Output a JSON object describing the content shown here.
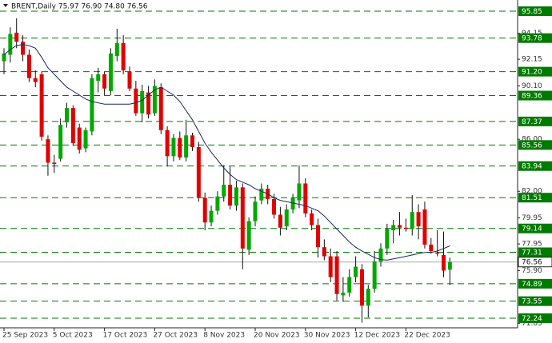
{
  "chart_data": {
    "type": "candlestick",
    "title": "BRENT,Daily  75.97 76.90 74.80 76.56",
    "categories": [
      "25 Sep 2023",
      null,
      null,
      null,
      null,
      null,
      null,
      null,
      "5 Oct 2023",
      null,
      null,
      null,
      null,
      null,
      null,
      null,
      "17 Oct 2023",
      null,
      null,
      null,
      null,
      null,
      null,
      null,
      "27 Oct 2023",
      null,
      null,
      null,
      null,
      null,
      null,
      null,
      "8 Nov 2023",
      null,
      null,
      null,
      null,
      null,
      null,
      null,
      "20 Nov 2023",
      null,
      null,
      null,
      null,
      null,
      null,
      null,
      "30 Nov 2023",
      null,
      null,
      null,
      null,
      null,
      null,
      null,
      "12 Dec 2023",
      null,
      null,
      null,
      null,
      null,
      null,
      null,
      "22 Dec 2023",
      null,
      null,
      null,
      null,
      null,
      null,
      null
    ],
    "open": [
      92.0,
      92.5,
      94.2,
      93.5,
      92.5,
      90.7,
      91.0,
      86.0,
      84.2,
      84.5,
      87.3,
      88.4,
      86.9,
      85.3,
      86.6,
      90.5,
      91.0,
      89.7,
      92.4,
      93.4,
      91.2,
      89.9,
      88.0,
      89.6,
      88.0,
      90.0,
      86.7,
      84.7,
      86.1,
      84.6,
      86.3,
      85.4,
      81.5,
      79.6,
      80.5,
      81.6,
      82.5,
      80.9,
      82.3,
      77.5,
      79.7,
      81.3,
      82.2,
      81.4,
      80.2,
      79.3,
      80.6,
      81.3,
      82.6,
      80.3,
      79.4,
      77.7,
      77.0,
      77.0,
      74.0,
      74.2,
      75.4,
      76.0,
      73.2,
      74.5,
      76.6,
      77.6,
      79.0,
      79.4,
      79.2,
      79.1,
      80.4,
      80.6,
      77.9,
      77.3,
      77.1,
      75.97
    ],
    "high": [
      93.0,
      94.6,
      95.3,
      94.0,
      92.9,
      91.3,
      91.2,
      86.3,
      84.8,
      87.6,
      88.8,
      88.6,
      87.2,
      86.9,
      91.0,
      91.5,
      91.2,
      93.0,
      94.5,
      94.0,
      91.6,
      90.5,
      90.2,
      90.1,
      90.6,
      90.3,
      87.0,
      86.4,
      86.6,
      87.5,
      86.5,
      85.8,
      81.9,
      80.9,
      82.0,
      84.0,
      83.9,
      82.8,
      82.6,
      80.0,
      81.6,
      82.6,
      82.5,
      81.8,
      80.8,
      81.0,
      81.8,
      84.0,
      83.0,
      80.6,
      79.9,
      78.3,
      77.6,
      77.4,
      75.4,
      76.0,
      77.0,
      76.4,
      74.8,
      77.4,
      78.0,
      79.5,
      79.8,
      80.4,
      79.9,
      81.7,
      81.0,
      81.2,
      78.4,
      79.0,
      78.9,
      76.9
    ],
    "low": [
      91.0,
      91.9,
      93.0,
      92.0,
      90.4,
      90.0,
      85.9,
      83.2,
      83.4,
      84.3,
      86.9,
      85.5,
      84.9,
      85.0,
      86.3,
      89.6,
      89.4,
      89.4,
      92.0,
      91.0,
      89.7,
      87.8,
      87.3,
      87.6,
      87.8,
      86.4,
      83.9,
      84.3,
      84.4,
      84.3,
      85.1,
      81.2,
      79.0,
      79.3,
      80.2,
      81.2,
      80.6,
      80.5,
      76.0,
      77.1,
      79.3,
      81.0,
      81.0,
      79.9,
      78.6,
      79.0,
      80.3,
      80.7,
      80.0,
      79.0,
      76.9,
      76.7,
      75.0,
      73.6,
      73.5,
      73.9,
      75.0,
      71.9,
      72.3,
      74.2,
      76.2,
      77.1,
      78.0,
      78.6,
      78.9,
      78.6,
      78.3,
      77.6,
      77.2,
      77.0,
      75.4,
      74.8
    ],
    "close": [
      92.6,
      94.1,
      93.5,
      92.5,
      90.7,
      90.4,
      86.2,
      84.2,
      84.1,
      87.1,
      88.4,
      85.7,
      85.2,
      86.7,
      90.7,
      91.0,
      89.9,
      92.6,
      93.4,
      91.3,
      89.9,
      88.0,
      89.7,
      87.9,
      90.1,
      86.7,
      84.7,
      86.1,
      84.6,
      86.3,
      85.4,
      81.5,
      79.6,
      80.5,
      81.6,
      82.5,
      80.9,
      82.3,
      77.6,
      79.7,
      81.2,
      82.2,
      81.4,
      80.2,
      79.2,
      80.6,
      81.5,
      82.6,
      80.3,
      79.4,
      77.7,
      77.0,
      75.4,
      74.1,
      74.2,
      75.4,
      76.2,
      73.2,
      74.5,
      76.6,
      77.6,
      79.1,
      79.4,
      79.2,
      79.1,
      80.4,
      79.3,
      77.9,
      77.4,
      77.2,
      75.9,
      76.56
    ],
    "up_color": "#00a800",
    "down_color": "#e00000",
    "ma": {
      "color": "#1c2a5c",
      "values": [
        92.5,
        92.9,
        93.2,
        93.3,
        93.2,
        93.0,
        92.3,
        91.5,
        91.0,
        90.5,
        90.0,
        89.7,
        89.4,
        89.1,
        88.9,
        88.8,
        88.7,
        88.7,
        88.7,
        88.7,
        88.7,
        88.8,
        89.0,
        89.4,
        89.8,
        90.0,
        89.7,
        89.4,
        88.9,
        88.2,
        87.5,
        86.6,
        85.7,
        85.0,
        84.4,
        83.8,
        83.3,
        82.9,
        82.7,
        82.5,
        82.2,
        82.0,
        81.8,
        81.5,
        81.3,
        81.2,
        81.1,
        81.0,
        80.9,
        80.7,
        80.5,
        80.1,
        79.6,
        79.1,
        78.6,
        78.1,
        77.7,
        77.4,
        77.15,
        76.9,
        76.75,
        76.7,
        76.8,
        76.9,
        77.0,
        77.1,
        77.2,
        77.3,
        77.3,
        77.4,
        77.6,
        77.8
      ]
    },
    "levels": {
      "color": "#007a00",
      "values": [
        95.85,
        93.78,
        {
          "value": 91.2,
          "label": "91.20"
        },
        89.36,
        87.37,
        85.56,
        83.94,
        81.51,
        79.14,
        77.31,
        74.89,
        73.55,
        72.24
      ]
    },
    "last_price": 76.56,
    "ylim": [
      71.5,
      96.71
    ],
    "yticks": [
      94.15,
      92.15,
      {
        "value": 90.1,
        "label": "90.10"
      },
      {
        "value": 86,
        "label": "86.00"
      },
      {
        "value": 82,
        "label": "82.00"
      },
      79.95,
      77.95,
      {
        "value": 75.9,
        "label": "75.90"
      },
      71.85
    ]
  }
}
